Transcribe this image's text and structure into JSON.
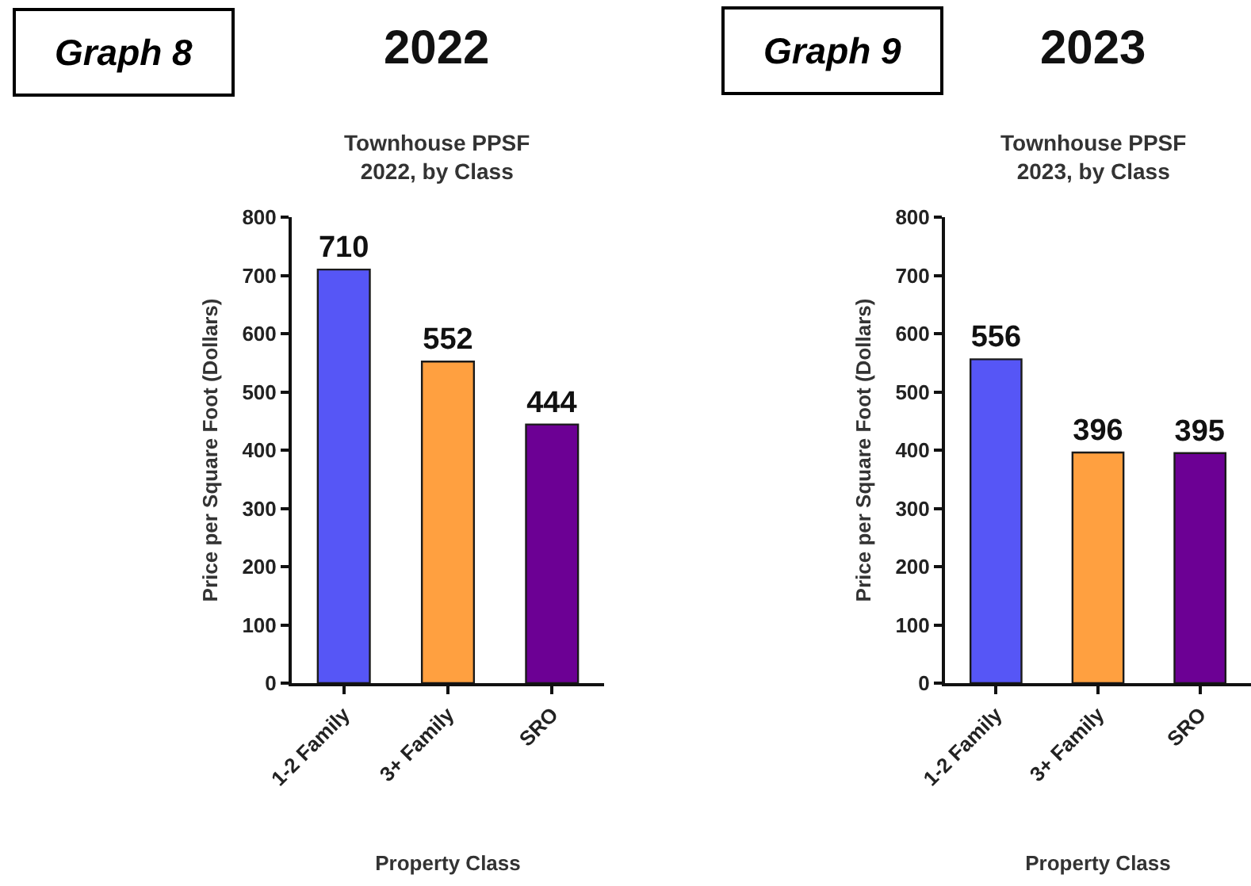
{
  "chart_data": [
    {
      "type": "bar",
      "title": "2022",
      "subtitle": "Townhouse PPSF 2022, by Class",
      "xlabel": "Property Class",
      "ylabel": "Price per Square Foot (Dollars)",
      "annotations": [
        "Graph 8"
      ],
      "categories": [
        "1-2 Family",
        "3+ Family",
        "SRO"
      ],
      "values": [
        710,
        552,
        444
      ],
      "colors": [
        "#5656f6",
        "#ffa040",
        "#6c0094"
      ],
      "ylim": [
        0,
        800
      ],
      "yticks": [
        0,
        100,
        200,
        300,
        400,
        500,
        600,
        700,
        800
      ],
      "data_labels": true
    },
    {
      "type": "bar",
      "title": "2023",
      "subtitle": "Townhouse PPSF 2023, by Class",
      "xlabel": "Property Class",
      "ylabel": "Price per Square Foot (Dollars)",
      "annotations": [
        "Graph 9"
      ],
      "categories": [
        "1-2 Family",
        "3+ Family",
        "SRO"
      ],
      "values": [
        556,
        396,
        395
      ],
      "colors": [
        "#5656f6",
        "#ffa040",
        "#6c0094"
      ],
      "ylim": [
        0,
        800
      ],
      "yticks": [
        0,
        100,
        200,
        300,
        400,
        500,
        600,
        700,
        800
      ],
      "data_labels": true
    }
  ]
}
